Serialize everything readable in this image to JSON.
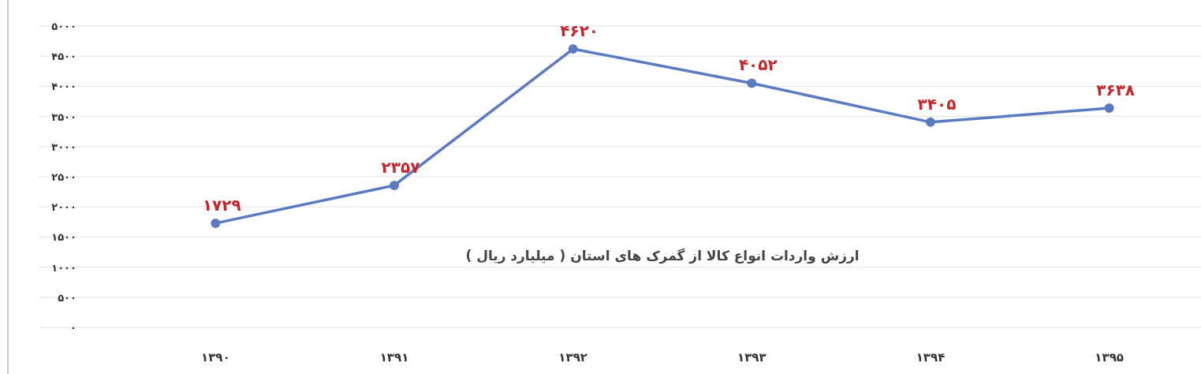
{
  "chart_data": {
    "type": "line",
    "title": "ارزش واردات انواع کالا از گمرک های استان ( میلیارد ریال )",
    "categories": [
      "۱۳۹۰",
      "۱۳۹۱",
      "۱۳۹۲",
      "۱۳۹۳",
      "۱۳۹۴",
      "۱۳۹۵"
    ],
    "series": [
      {
        "color": "#5b7bc0",
        "values": [
          1729,
          2357,
          4620,
          4052,
          3405,
          3638
        ],
        "value_labels": [
          "۱۷۲۹",
          "۲۳۵۷",
          "۴۶۲۰",
          "۴۰۵۲",
          "۳۴۰۵",
          "۳۶۳۸"
        ]
      }
    ],
    "ylim": [
      0,
      5000
    ],
    "yticks": [
      {
        "value": 0,
        "label": "۰"
      },
      {
        "value": 500,
        "label": "۵۰۰"
      },
      {
        "value": 1000,
        "label": "۱۰۰۰"
      },
      {
        "value": 1500,
        "label": "۱۵۰۰"
      },
      {
        "value": 2000,
        "label": "۲۰۰۰"
      },
      {
        "value": 2500,
        "label": "۲۵۰۰"
      },
      {
        "value": 3000,
        "label": "۳۰۰۰"
      },
      {
        "value": 3500,
        "label": "۳۵۰۰"
      },
      {
        "value": 4000,
        "label": "۴۰۰۰"
      },
      {
        "value": 4500,
        "label": "۴۵۰۰"
      },
      {
        "value": 5000,
        "label": "۵۰۰۰"
      }
    ],
    "grid": "y",
    "marker": "circle",
    "line_style": "solid"
  }
}
